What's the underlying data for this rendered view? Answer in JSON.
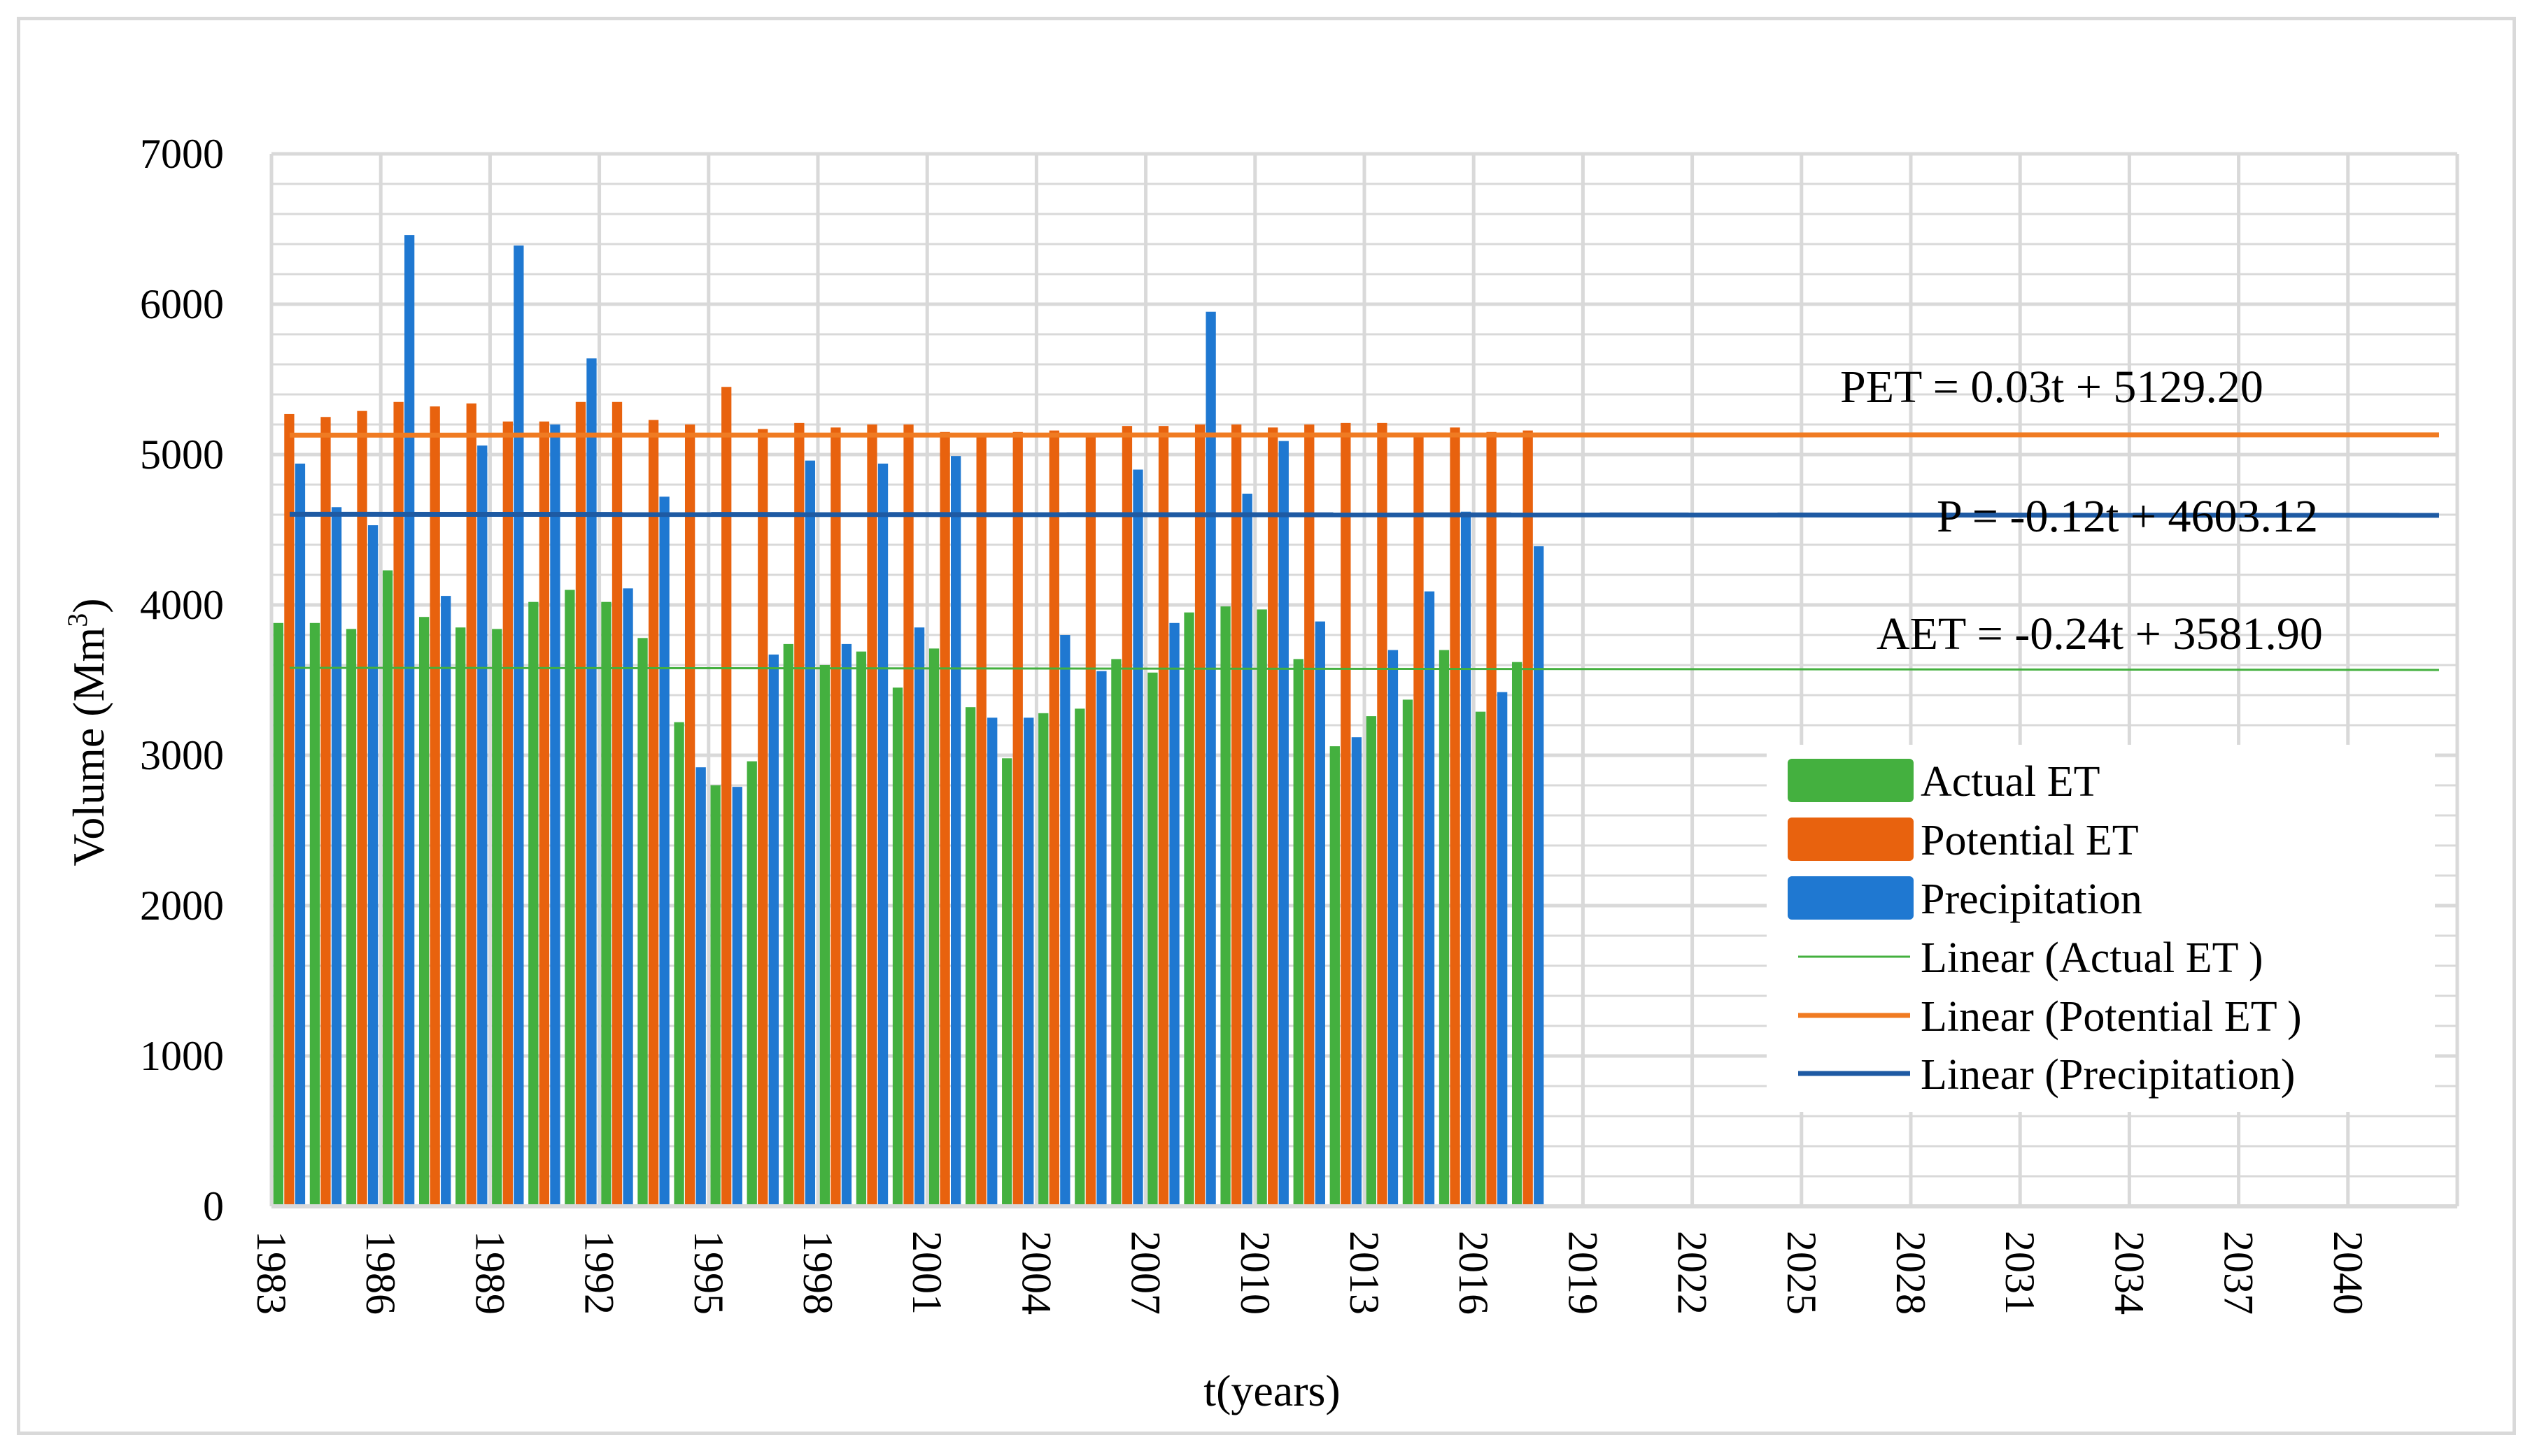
{
  "chart_data": {
    "type": "bar",
    "title": "",
    "xlabel": "t(years)",
    "ylabel": "Volume (Mm",
    "ylabel_sup": "3",
    "ylabel_suffix": ")",
    "ylim": [
      0,
      7000
    ],
    "yticks": [
      "0",
      "1000",
      "2000",
      "3000",
      "4000",
      "5000",
      "6000",
      "7000"
    ],
    "xticks": [
      "1983",
      "1986",
      "1989",
      "1992",
      "1995",
      "1998",
      "2001",
      "2004",
      "2007",
      "2010",
      "2013",
      "2016",
      "2019",
      "2022",
      "2025",
      "2028",
      "2031",
      "2034",
      "2037",
      "2040"
    ],
    "x_range": [
      1983,
      2042
    ],
    "grid": true,
    "legend_position": "right",
    "categories": [
      1983,
      1984,
      1985,
      1986,
      1987,
      1988,
      1989,
      1990,
      1991,
      1992,
      1993,
      1994,
      1995,
      1996,
      1997,
      1998,
      1999,
      2000,
      2001,
      2002,
      2003,
      2004,
      2005,
      2006,
      2007,
      2008,
      2009,
      2010,
      2011,
      2012,
      2013,
      2014,
      2015,
      2016,
      2017
    ],
    "series": [
      {
        "name": "Actual ET",
        "color": "#44b03f",
        "values": [
          3880,
          3880,
          3840,
          4230,
          3920,
          3850,
          3840,
          4020,
          4100,
          4020,
          3780,
          3220,
          2800,
          2960,
          3740,
          3600,
          3690,
          3450,
          3710,
          3320,
          2980,
          3280,
          3310,
          3640,
          3550,
          3950,
          3990,
          3970,
          3640,
          3060,
          3260,
          3370,
          3700,
          3290,
          3620
        ]
      },
      {
        "name": "Potential ET",
        "color": "#e8620e",
        "values": [
          5270,
          5250,
          5290,
          5350,
          5320,
          5340,
          5220,
          5220,
          5350,
          5350,
          5230,
          5200,
          5450,
          5170,
          5210,
          5180,
          5200,
          5200,
          5150,
          5130,
          5150,
          5160,
          5140,
          5190,
          5190,
          5200,
          5200,
          5180,
          5200,
          5210,
          5210,
          5140,
          5180,
          5150,
          5160
        ]
      },
      {
        "name": "Precipitation",
        "color": "#1f78d1",
        "values": [
          4940,
          4650,
          4530,
          6460,
          4060,
          5060,
          6390,
          5200,
          5640,
          4110,
          4720,
          2920,
          2790,
          3670,
          4960,
          3740,
          4940,
          3850,
          4990,
          3250,
          3250,
          3800,
          3560,
          4900,
          3880,
          5950,
          4740,
          5090,
          3890,
          3120,
          3700,
          4090,
          4620,
          3420,
          4390
        ]
      }
    ],
    "trendlines": [
      {
        "name": "Linear (Actual ET )",
        "color": "#44b03f",
        "slope": -0.24,
        "intercept": 3581.9,
        "equation": "AET = -0.24t + 3581.90"
      },
      {
        "name": "Linear (Potential ET )",
        "color": "#f07b22",
        "slope": 0.03,
        "intercept": 5129.2,
        "equation": "PET = 0.03t + 5129.20"
      },
      {
        "name": "Linear (Precipitation)",
        "color": "#1e5aa3",
        "slope": -0.12,
        "intercept": 4603.12,
        "equation": "P = -0.12t + 4603.12"
      }
    ],
    "legend": [
      "Actual ET",
      "Potential ET",
      "Precipitation",
      "Linear (Actual ET )",
      "Linear (Potential ET )",
      "Linear (Precipitation)"
    ]
  }
}
